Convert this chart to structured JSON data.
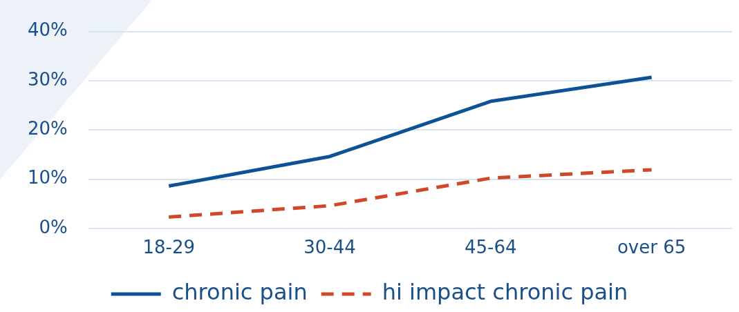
{
  "chart_data": {
    "type": "line",
    "categories": [
      "18-29",
      "30-44",
      "45-64",
      "over 65"
    ],
    "series": [
      {
        "name": "chronic pain",
        "color": "#0d5296",
        "values": [
          8.6,
          14.6,
          25.8,
          30.7
        ],
        "line_style": "solid"
      },
      {
        "name": "hi impact chronic pain",
        "color": "#d0482a",
        "values": [
          2.3,
          4.6,
          10.2,
          11.9
        ],
        "line_style": "dashed"
      }
    ],
    "ylim": [
      0,
      40
    ],
    "yticks": [
      {
        "value": 0,
        "label": "0%"
      },
      {
        "value": 10,
        "label": "10%"
      },
      {
        "value": 20,
        "label": "20%"
      },
      {
        "value": 30,
        "label": "30%"
      },
      {
        "value": 40,
        "label": "40%"
      }
    ],
    "grid": "y",
    "legend": "bottom",
    "marker": "none"
  }
}
